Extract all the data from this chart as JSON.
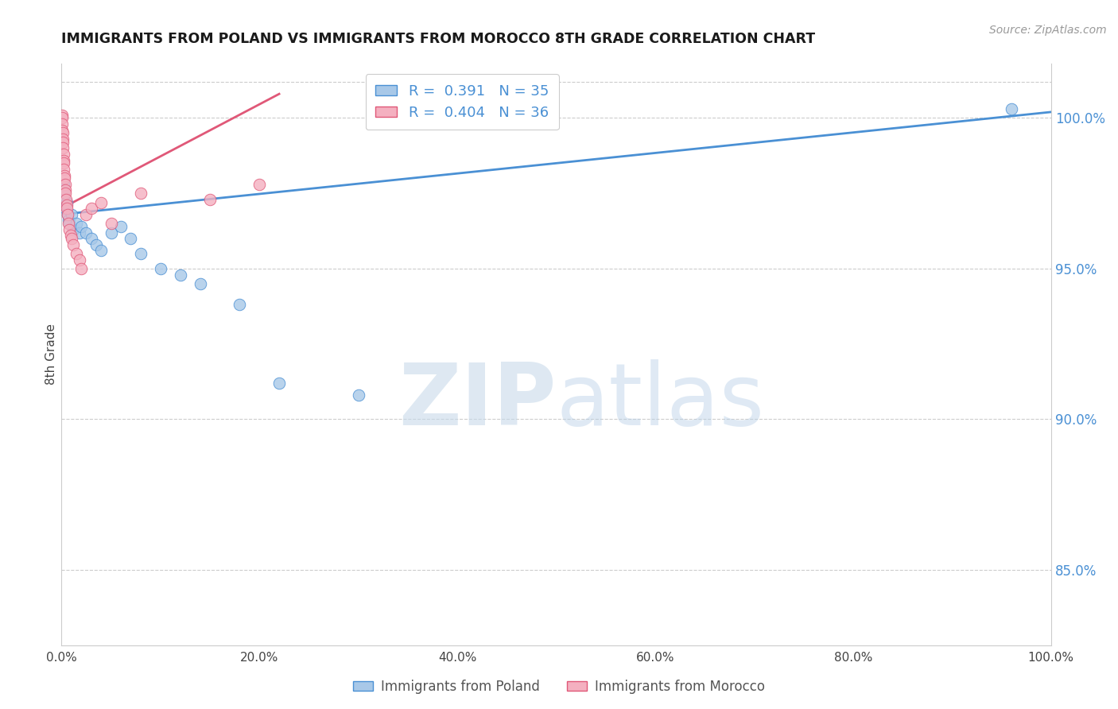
{
  "title": "IMMIGRANTS FROM POLAND VS IMMIGRANTS FROM MOROCCO 8TH GRADE CORRELATION CHART",
  "source": "Source: ZipAtlas.com",
  "ylabel": "8th Grade",
  "ylabel_right_ticks": [
    100.0,
    95.0,
    90.0,
    85.0
  ],
  "r_poland": 0.391,
  "n_poland": 35,
  "r_morocco": 0.404,
  "n_morocco": 36,
  "poland_color": "#a8c8e8",
  "morocco_color": "#f4b0c0",
  "poland_line_color": "#4a90d4",
  "morocco_line_color": "#e05878",
  "legend_label_poland": "Immigrants from Poland",
  "legend_label_morocco": "Immigrants from Morocco",
  "xlim": [
    0.0,
    100.0
  ],
  "ylim": [
    82.5,
    101.8
  ],
  "poland_x": [
    0.05,
    0.08,
    0.1,
    0.12,
    0.15,
    0.18,
    0.2,
    0.25,
    0.3,
    0.35,
    0.4,
    0.5,
    0.6,
    0.7,
    0.8,
    1.0,
    1.2,
    1.5,
    1.8,
    2.0,
    2.5,
    3.0,
    3.5,
    4.0,
    5.0,
    6.0,
    7.0,
    8.0,
    10.0,
    12.0,
    14.0,
    18.0,
    22.0,
    30.0,
    96.0
  ],
  "poland_y": [
    97.2,
    97.4,
    97.5,
    97.3,
    97.6,
    97.8,
    97.5,
    97.4,
    97.3,
    97.0,
    97.1,
    97.2,
    96.8,
    96.6,
    96.5,
    96.8,
    96.3,
    96.5,
    96.2,
    96.4,
    96.2,
    96.0,
    95.8,
    95.6,
    96.2,
    96.4,
    96.0,
    95.5,
    95.0,
    94.8,
    94.5,
    93.8,
    91.2,
    90.8,
    100.3
  ],
  "morocco_x": [
    0.03,
    0.05,
    0.07,
    0.08,
    0.1,
    0.12,
    0.14,
    0.16,
    0.18,
    0.2,
    0.22,
    0.25,
    0.28,
    0.3,
    0.35,
    0.38,
    0.4,
    0.45,
    0.5,
    0.55,
    0.6,
    0.7,
    0.8,
    0.9,
    1.0,
    1.2,
    1.5,
    1.8,
    2.0,
    2.5,
    3.0,
    4.0,
    5.0,
    8.0,
    15.0,
    20.0
  ],
  "morocco_y": [
    100.1,
    100.0,
    99.8,
    99.6,
    99.5,
    99.3,
    99.2,
    99.0,
    98.8,
    98.6,
    98.5,
    98.3,
    98.1,
    98.0,
    97.8,
    97.6,
    97.5,
    97.3,
    97.1,
    97.0,
    96.8,
    96.5,
    96.3,
    96.1,
    96.0,
    95.8,
    95.5,
    95.3,
    95.0,
    96.8,
    97.0,
    97.2,
    96.5,
    97.5,
    97.3,
    97.8
  ],
  "poland_trendline_x": [
    0.0,
    100.0
  ],
  "poland_trendline_y": [
    96.8,
    100.2
  ],
  "morocco_trendline_x": [
    0.0,
    22.0
  ],
  "morocco_trendline_y": [
    97.0,
    100.8
  ],
  "watermark_zip": "ZIP",
  "watermark_atlas": "atlas",
  "background_color": "#ffffff",
  "grid_color": "#cccccc"
}
